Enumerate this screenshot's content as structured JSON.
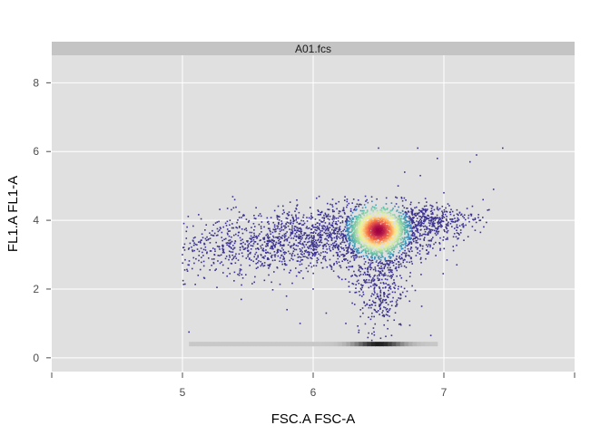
{
  "chart_data": {
    "type": "scatter",
    "title": "",
    "panel_label": "A01.fcs",
    "xlabel": "FSC.A FSC-A",
    "ylabel": "FL1.A FL1-A",
    "xlim": [
      4,
      8
    ],
    "ylim": [
      -0.4,
      8.8
    ],
    "x_ticks": [
      5,
      6,
      7
    ],
    "y_ticks": [
      0,
      2,
      4,
      6,
      8
    ],
    "x_tick_labels": [
      "5",
      "6",
      "7"
    ],
    "y_tick_labels": [
      "0",
      "2",
      "4",
      "6",
      "8"
    ],
    "grid": true,
    "legend": "none",
    "density_colormap": [
      "#5e4fa2",
      "#3288bd",
      "#66c2a5",
      "#abdda4",
      "#e6f598",
      "#fee08b",
      "#fdae61",
      "#f46d43",
      "#d53e4f",
      "#9e0142"
    ],
    "colors": {
      "panel_background": "#e0e0e0",
      "strip_background": "#c4c4c4",
      "grid_line": "#ffffff",
      "low_density_point": "#3b3290"
    },
    "density_peak": {
      "x": 6.5,
      "y": 3.7
    },
    "points": [
      [
        5.0,
        3.0
      ],
      [
        5.05,
        2.7
      ],
      [
        5.1,
        3.3
      ],
      [
        5.12,
        2.4
      ],
      [
        5.15,
        3.6
      ],
      [
        5.2,
        2.9
      ],
      [
        5.25,
        3.1
      ],
      [
        5.3,
        3.5
      ],
      [
        5.35,
        2.6
      ],
      [
        5.4,
        3.2
      ],
      [
        5.45,
        1.7
      ],
      [
        5.5,
        3.4
      ],
      [
        5.55,
        2.2
      ],
      [
        5.6,
        3.0
      ],
      [
        5.65,
        3.6
      ],
      [
        5.7,
        2.5
      ],
      [
        5.75,
        3.3
      ],
      [
        5.8,
        1.4
      ],
      [
        5.85,
        3.1
      ],
      [
        5.9,
        2.8
      ],
      [
        5.95,
        3.5
      ],
      [
        5.05,
        0.75
      ],
      [
        5.4,
        4.6
      ],
      [
        5.9,
        1.0
      ],
      [
        6.0,
        2.0
      ],
      [
        6.05,
        3.9
      ],
      [
        6.1,
        1.3
      ],
      [
        6.15,
        4.3
      ],
      [
        6.25,
        1.0
      ],
      [
        6.3,
        4.5
      ],
      [
        6.35,
        0.8
      ],
      [
        6.4,
        4.7
      ],
      [
        6.5,
        6.1
      ],
      [
        6.6,
        4.5
      ],
      [
        6.65,
        5.0
      ],
      [
        6.7,
        5.4
      ],
      [
        6.8,
        6.1
      ],
      [
        6.82,
        5.3
      ],
      [
        6.95,
        5.8
      ],
      [
        7.0,
        4.8
      ],
      [
        7.1,
        4.3
      ],
      [
        7.15,
        3.8
      ],
      [
        7.2,
        5.7
      ],
      [
        7.25,
        5.9
      ],
      [
        7.3,
        4.6
      ],
      [
        7.38,
        4.9
      ],
      [
        7.45,
        6.1
      ],
      [
        7.28,
        4.0
      ],
      [
        6.45,
        0.7
      ],
      [
        6.6,
        0.65
      ],
      [
        6.9,
        0.65
      ]
    ],
    "clusters": [
      {
        "x": 6.5,
        "y": 3.6,
        "sx": 0.22,
        "sy": 0.45,
        "n": 1400
      },
      {
        "x": 6.48,
        "y": 3.72,
        "sx": 0.09,
        "sy": 0.16,
        "n": 700
      },
      {
        "x": 6.5,
        "y": 2.3,
        "sx": 0.1,
        "sy": 0.8,
        "n": 450
      },
      {
        "x": 5.55,
        "y": 3.2,
        "sx": 0.4,
        "sy": 0.45,
        "n": 700
      },
      {
        "x": 6.0,
        "y": 3.6,
        "sx": 0.25,
        "sy": 0.4,
        "n": 500
      },
      {
        "x": 6.9,
        "y": 4.0,
        "sx": 0.18,
        "sy": 0.22,
        "n": 350
      }
    ],
    "baseline_band": {
      "y": 0.4,
      "x_start": 5.05,
      "x_end": 6.95
    }
  }
}
